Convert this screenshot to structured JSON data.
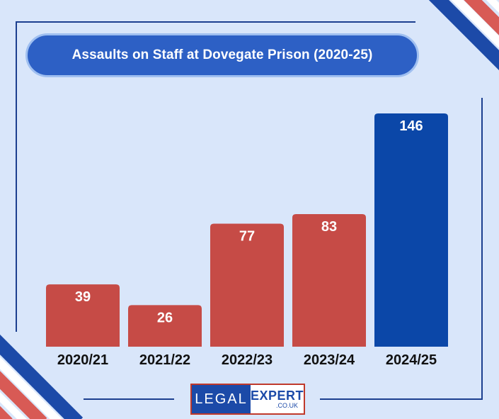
{
  "colors": {
    "background": "#d9e6fa",
    "bar_default": "#c64b46",
    "bar_highlight": "#0b47a8",
    "accent_blue": "#2d60c5",
    "accent_red": "#d85a55"
  },
  "logo": {
    "left": "LEGAL",
    "right": "EXPERT",
    "domain": ".CO.UK"
  },
  "chart_data": {
    "type": "bar",
    "title": "Assaults on Staff at Dovegate Prison (2020-25)",
    "xlabel": "",
    "ylabel": "",
    "categories": [
      "2020/21",
      "2021/22",
      "2022/23",
      "2023/24",
      "2024/25"
    ],
    "values": [
      39,
      26,
      77,
      83,
      146
    ],
    "highlight": "2024/25",
    "data_labels": true,
    "grid": false,
    "legend": "none"
  }
}
